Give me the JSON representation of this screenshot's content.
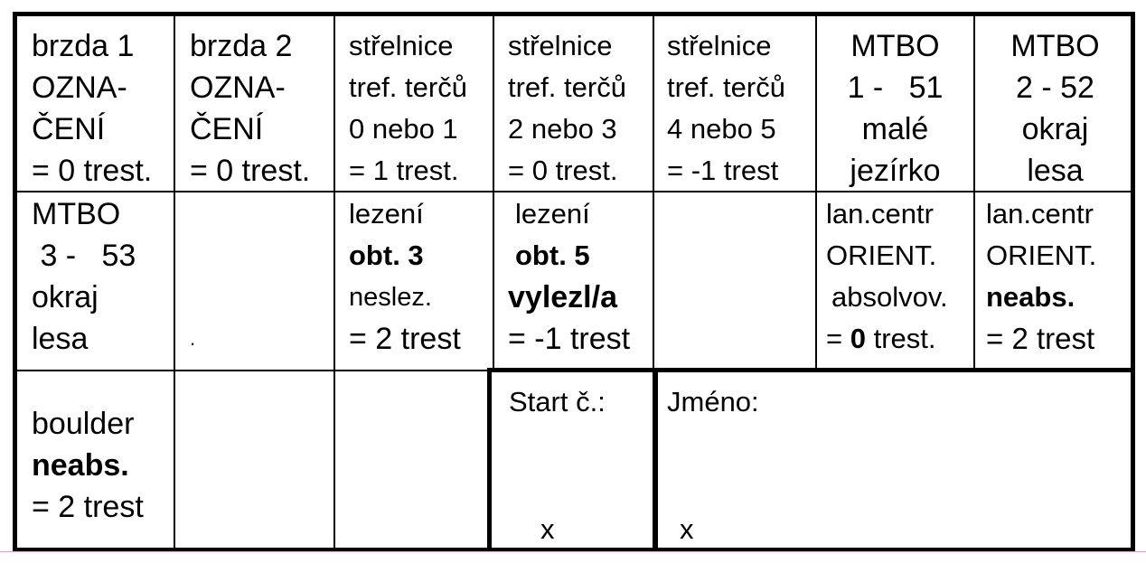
{
  "row1": [
    {
      "lines": [
        "brzda 1",
        "OZNA-",
        "ČENÍ",
        "= 0 trest."
      ]
    },
    {
      "lines": [
        "brzda 2",
        "OZNA-",
        "ČENÍ",
        "= 0 trest."
      ]
    },
    {
      "lines": [
        "střelnice",
        "tref. terčů",
        "0 nebo 1",
        "= 1 trest."
      ]
    },
    {
      "lines": [
        "střelnice",
        "tref. terčů",
        "2 nebo 3",
        "= 0 trest."
      ]
    },
    {
      "lines": [
        "střelnice",
        "tref. terčů",
        "4 nebo 5",
        "= -1 trest"
      ]
    },
    {
      "lines": [
        "MTBO",
        "1 -   51",
        "malé",
        "jezírko"
      ]
    },
    {
      "lines": [
        "MTBO",
        "2 - 52",
        "okraj",
        "lesa"
      ]
    }
  ],
  "row2": [
    {
      "lines": [
        "MTBO",
        " 3 -   53",
        "okraj",
        "lesa"
      ]
    },
    {
      "lines": [
        "",
        "",
        "",
        "."
      ]
    },
    {
      "lines": [
        "lezení",
        "obt. 3",
        "neslez.",
        "= 2 trest"
      ]
    },
    {
      "lines": [
        "lezení",
        "obt. 5",
        "vylezl/a",
        "= -1 trest"
      ]
    },
    {
      "lines": []
    },
    {
      "lines": [
        "lan.centr",
        "ORIENT.",
        "absolvov.",
        "0",
        "= ",
        " trest."
      ]
    },
    {
      "lines": [
        "lan.centr",
        "ORIENT.",
        "neabs.",
        "= 2 trest"
      ]
    }
  ],
  "row3": {
    "boulder": {
      "line1": "boulder",
      "line2": "neabs.",
      "line3": "= 2 trest"
    },
    "start": {
      "label": "Start č.:",
      "mark": "x"
    },
    "name": {
      "label": "Jméno:",
      "mark": "x"
    }
  }
}
